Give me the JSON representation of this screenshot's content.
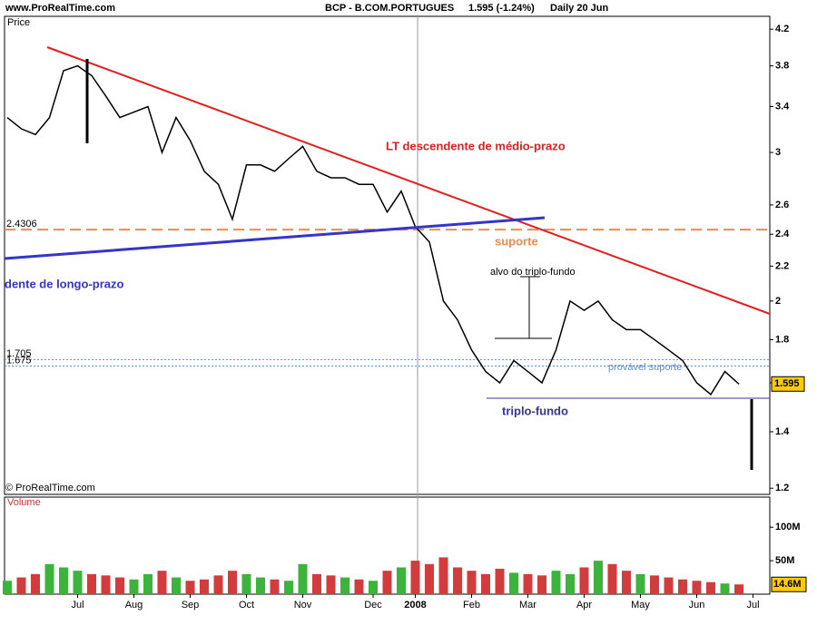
{
  "header": {
    "site": "www.ProRealTime.com",
    "instrument": "BCP - B.COM.PORTUGUES",
    "quote": "1.595 (-1.24%)",
    "period": "Daily  20 Jun"
  },
  "chart_data": [
    {
      "type": "line",
      "panel_label": "Price",
      "copyright": "© ProRealTime.com",
      "color": "#000000",
      "log_scale": true,
      "categories": [
        null,
        null,
        null,
        null,
        null,
        "Jul",
        null,
        null,
        null,
        "Aug",
        null,
        null,
        null,
        "Sep",
        null,
        null,
        null,
        "Oct",
        null,
        null,
        null,
        "Nov",
        null,
        null,
        null,
        null,
        "Dec",
        null,
        null,
        "2008",
        null,
        null,
        null,
        "Feb",
        null,
        null,
        null,
        "Mar",
        null,
        null,
        null,
        "Apr",
        null,
        null,
        null,
        "May",
        null,
        null,
        null,
        "Jun",
        null,
        null,
        null,
        "Jul"
      ],
      "values": [
        3.3,
        3.2,
        3.15,
        3.3,
        3.75,
        3.8,
        3.7,
        3.5,
        3.3,
        3.35,
        3.4,
        3.0,
        3.3,
        3.1,
        2.85,
        2.75,
        2.5,
        2.9,
        2.9,
        2.85,
        2.95,
        3.05,
        2.85,
        2.8,
        2.8,
        2.75,
        2.75,
        2.55,
        2.7,
        2.45,
        2.35,
        2.0,
        1.9,
        1.75,
        1.65,
        1.6,
        1.7,
        1.65,
        1.6,
        1.75,
        2.0,
        1.95,
        2.0,
        1.9,
        1.85,
        1.85,
        1.8,
        1.75,
        1.7,
        1.6,
        1.55,
        1.65,
        1.595,
        null
      ],
      "ylim": [
        1.18,
        4.35
      ],
      "yticks": [
        1.2,
        1.4,
        1.6,
        1.8,
        2,
        2.2,
        2.4,
        2.6,
        3,
        3.4,
        3.8,
        4.2
      ],
      "levels": [
        {
          "value": 2.4306,
          "color": "#f08a4b"
        },
        {
          "value": 1.705,
          "color": "#5b8fd9"
        },
        {
          "value": 1.675,
          "color": "#5b8fd9"
        }
      ],
      "annotations": {
        "resistance": "LT descendente de médio-prazo",
        "support": "suporte",
        "long_trend": "dente de longo-prazo",
        "target": "alvo do triplo-fundo",
        "triple_bottom": "triplo-fundo",
        "probable_support": "provável suporte"
      }
    },
    {
      "type": "bar",
      "panel_label": "Volume",
      "values": [
        20,
        25,
        30,
        45,
        40,
        35,
        30,
        28,
        25,
        22,
        30,
        35,
        25,
        20,
        22,
        28,
        35,
        30,
        25,
        22,
        20,
        45,
        30,
        28,
        25,
        22,
        20,
        35,
        40,
        50,
        45,
        55,
        40,
        35,
        30,
        38,
        32,
        30,
        28,
        35,
        30,
        40,
        50,
        45,
        35,
        30,
        28,
        25,
        22,
        20,
        18,
        16,
        14.6,
        null
      ],
      "value_labels": [
        null,
        null,
        null,
        null,
        null,
        null,
        null,
        null,
        null,
        null,
        null,
        null,
        null,
        null,
        null,
        null,
        null,
        null,
        null,
        null,
        null,
        null,
        null,
        null,
        null,
        null,
        null,
        null,
        null,
        null,
        null,
        null,
        null,
        null,
        null,
        null,
        null,
        null,
        null,
        null,
        null,
        null,
        null,
        null,
        null,
        null,
        null,
        null,
        null,
        null,
        null,
        null,
        "14.6M",
        null
      ],
      "up_color": "#3cb43c",
      "down_color": "#d23c3c",
      "ylim": [
        0,
        145
      ],
      "yticks": [
        {
          "value": 50,
          "label": "50M"
        },
        {
          "value": 100,
          "label": "100M"
        }
      ]
    }
  ]
}
